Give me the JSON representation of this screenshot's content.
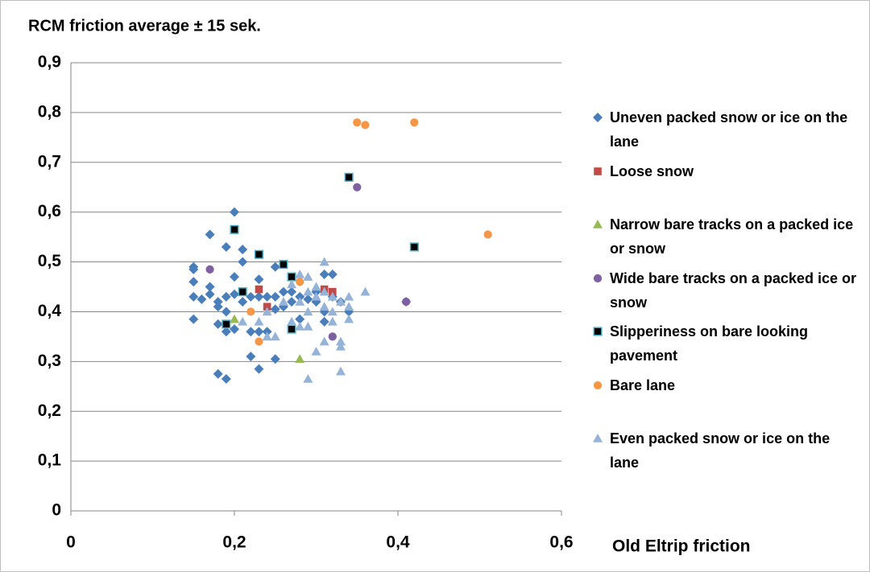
{
  "chart_data": {
    "type": "scatter",
    "title": "RCM friction average ± 15 sek.",
    "xlabel": "Old Eltrip friction",
    "xlim": [
      0,
      0.6
    ],
    "ylim": [
      0,
      0.9
    ],
    "xticks": [
      0,
      {
        "value": 0.2,
        "label": "0,2"
      },
      {
        "value": 0.4,
        "label": "0,4"
      },
      {
        "value": 0.6,
        "label": "0,6"
      }
    ],
    "yticks": [
      0,
      {
        "value": 0.1,
        "label": "0,1"
      },
      {
        "value": 0.2,
        "label": "0,2"
      },
      {
        "value": 0.3,
        "label": "0,3"
      },
      {
        "value": 0.4,
        "label": "0,4"
      },
      {
        "value": 0.5,
        "label": "0,5"
      },
      {
        "value": 0.6,
        "label": "0,6"
      },
      {
        "value": 0.7,
        "label": "0,7"
      },
      {
        "value": 0.8,
        "label": "0,8"
      },
      {
        "value": 0.9,
        "label": "0,9"
      }
    ],
    "grid": true,
    "legend": "right",
    "series": [
      {
        "name": "Uneven packed snow or ice on the lane",
        "color": "#4a7ebb",
        "marker": "diamond",
        "x": [
          0.15,
          0.15,
          0.15,
          0.15,
          0.15,
          0.16,
          0.17,
          0.17,
          0.17,
          0.18,
          0.18,
          0.18,
          0.18,
          0.19,
          0.19,
          0.19,
          0.19,
          0.19,
          0.2,
          0.2,
          0.2,
          0.2,
          0.21,
          0.21,
          0.21,
          0.22,
          0.22,
          0.22,
          0.23,
          0.23,
          0.23,
          0.23,
          0.24,
          0.24,
          0.25,
          0.25,
          0.25,
          0.25,
          0.26,
          0.26,
          0.27,
          0.27,
          0.28,
          0.28,
          0.29,
          0.3,
          0.3,
          0.31,
          0.31,
          0.31,
          0.32,
          0.32,
          0.33,
          0.34,
          0.41
        ],
        "y": [
          0.49,
          0.485,
          0.46,
          0.43,
          0.385,
          0.425,
          0.555,
          0.45,
          0.435,
          0.42,
          0.41,
          0.375,
          0.275,
          0.53,
          0.43,
          0.4,
          0.36,
          0.265,
          0.6,
          0.47,
          0.435,
          0.365,
          0.525,
          0.5,
          0.42,
          0.43,
          0.36,
          0.31,
          0.465,
          0.43,
          0.36,
          0.285,
          0.43,
          0.36,
          0.49,
          0.43,
          0.405,
          0.305,
          0.44,
          0.41,
          0.44,
          0.42,
          0.43,
          0.385,
          0.425,
          0.44,
          0.42,
          0.475,
          0.4,
          0.38,
          0.475,
          0.43,
          0.42,
          0.4,
          0.42
        ]
      },
      {
        "name": "Loose snow",
        "color": "#be4b48",
        "marker": "square",
        "x": [
          0.23,
          0.24,
          0.31,
          0.32
        ],
        "y": [
          0.445,
          0.41,
          0.445,
          0.44
        ]
      },
      {
        "name": "Narrow bare tracks on a packed ice or snow",
        "color": "#98b954",
        "marker": "triangle",
        "x": [
          0.2,
          0.28,
          0.27
        ],
        "y": [
          0.385,
          0.305,
          0.47
        ]
      },
      {
        "name": "Wide bare tracks on a packed ice or snow",
        "color": "#7d60a0",
        "marker": "circle",
        "x": [
          0.17,
          0.35,
          0.32,
          0.41
        ],
        "y": [
          0.485,
          0.65,
          0.35,
          0.42
        ]
      },
      {
        "name": "Slipperiness on bare looking pavement",
        "color": "#000000",
        "edgecolor": "#4bacc6",
        "marker": "square",
        "x": [
          0.2,
          0.23,
          0.26,
          0.27,
          0.21,
          0.19,
          0.27,
          0.34,
          0.42
        ],
        "y": [
          0.565,
          0.515,
          0.495,
          0.47,
          0.44,
          0.375,
          0.365,
          0.67,
          0.53
        ]
      },
      {
        "name": "Bare lane",
        "color": "#f79646",
        "marker": "circle",
        "x": [
          0.35,
          0.36,
          0.42,
          0.51,
          0.22,
          0.23,
          0.28
        ],
        "y": [
          0.78,
          0.775,
          0.78,
          0.555,
          0.4,
          0.34,
          0.46
        ]
      },
      {
        "name": "Even packed snow or ice on the lane",
        "color": "#95b3d7",
        "marker": "triangle",
        "x": [
          0.21,
          0.23,
          0.24,
          0.24,
          0.25,
          0.26,
          0.27,
          0.27,
          0.28,
          0.28,
          0.28,
          0.29,
          0.29,
          0.29,
          0.29,
          0.29,
          0.3,
          0.3,
          0.3,
          0.31,
          0.31,
          0.31,
          0.31,
          0.32,
          0.32,
          0.32,
          0.33,
          0.33,
          0.33,
          0.33,
          0.34,
          0.34,
          0.34,
          0.36
        ],
        "y": [
          0.38,
          0.38,
          0.4,
          0.35,
          0.35,
          0.42,
          0.455,
          0.38,
          0.475,
          0.42,
          0.37,
          0.47,
          0.44,
          0.4,
          0.37,
          0.265,
          0.45,
          0.43,
          0.32,
          0.5,
          0.44,
          0.41,
          0.34,
          0.43,
          0.4,
          0.38,
          0.42,
          0.34,
          0.33,
          0.28,
          0.43,
          0.41,
          0.385,
          0.44
        ]
      }
    ]
  }
}
